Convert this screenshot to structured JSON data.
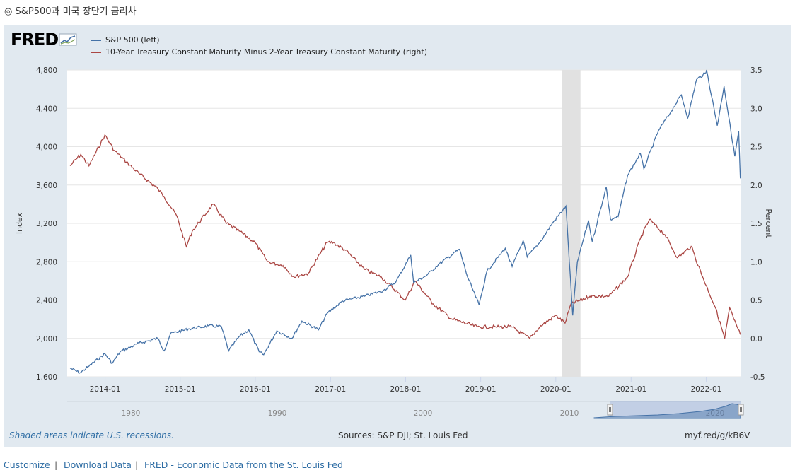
{
  "page_title": "◎ S&P500과 미국 장단기 금리차",
  "logo_text": "FRED",
  "footer": {
    "customize": "Customize",
    "download": "Download Data",
    "fred_link": "FRED - Economic Data from the St. Louis Fed",
    "separator": "|"
  },
  "notes": {
    "recession_note": "Shaded areas indicate U.S. recessions.",
    "sources": "Sources: S&P DJI; St. Louis Fed",
    "short_url": "myf.red/g/kB6V"
  },
  "colors": {
    "sp500": "#4572a7",
    "spread": "#aa4643",
    "panel_bg": "#e1e9f0",
    "recession": "#e1e1e1",
    "link": "#2e6da4"
  },
  "chart_data": {
    "type": "line",
    "title": "",
    "series": [
      {
        "name": "S&P 500 (left)",
        "axis": "left",
        "color": "#4572a7",
        "points": [
          [
            "2013-07-15",
            1690
          ],
          [
            "2013-09-01",
            1640
          ],
          [
            "2013-10-15",
            1710
          ],
          [
            "2013-12-31",
            1840
          ],
          [
            "2014-02-05",
            1740
          ],
          [
            "2014-03-15",
            1860
          ],
          [
            "2014-06-15",
            1950
          ],
          [
            "2014-09-15",
            2000
          ],
          [
            "2014-10-15",
            1870
          ],
          [
            "2014-11-15",
            2050
          ],
          [
            "2015-02-15",
            2100
          ],
          [
            "2015-05-20",
            2130
          ],
          [
            "2015-07-20",
            2125
          ],
          [
            "2015-08-25",
            1870
          ],
          [
            "2015-10-15",
            2020
          ],
          [
            "2015-12-01",
            2090
          ],
          [
            "2016-01-20",
            1860
          ],
          [
            "2016-02-11",
            1830
          ],
          [
            "2016-04-15",
            2080
          ],
          [
            "2016-06-27",
            2000
          ],
          [
            "2016-08-15",
            2180
          ],
          [
            "2016-11-04",
            2090
          ],
          [
            "2016-12-15",
            2260
          ],
          [
            "2017-03-01",
            2390
          ],
          [
            "2017-06-15",
            2440
          ],
          [
            "2017-09-15",
            2500
          ],
          [
            "2017-11-15",
            2590
          ],
          [
            "2018-01-26",
            2870
          ],
          [
            "2018-02-09",
            2580
          ],
          [
            "2018-04-15",
            2660
          ],
          [
            "2018-06-15",
            2780
          ],
          [
            "2018-09-20",
            2930
          ],
          [
            "2018-10-29",
            2640
          ],
          [
            "2018-12-24",
            2350
          ],
          [
            "2019-01-31",
            2700
          ],
          [
            "2019-04-30",
            2940
          ],
          [
            "2019-06-03",
            2750
          ],
          [
            "2019-07-26",
            3020
          ],
          [
            "2019-08-15",
            2850
          ],
          [
            "2019-10-15",
            3000
          ],
          [
            "2019-12-15",
            3200
          ],
          [
            "2020-02-19",
            3380
          ],
          [
            "2020-03-23",
            2240
          ],
          [
            "2020-04-15",
            2800
          ],
          [
            "2020-06-08",
            3230
          ],
          [
            "2020-06-26",
            3010
          ],
          [
            "2020-09-02",
            3580
          ],
          [
            "2020-09-23",
            3240
          ],
          [
            "2020-10-30",
            3270
          ],
          [
            "2020-12-15",
            3700
          ],
          [
            "2021-02-15",
            3930
          ],
          [
            "2021-03-04",
            3770
          ],
          [
            "2021-05-15",
            4170
          ],
          [
            "2021-07-15",
            4370
          ],
          [
            "2021-09-02",
            4540
          ],
          [
            "2021-10-04",
            4300
          ],
          [
            "2021-11-15",
            4700
          ],
          [
            "2021-12-31",
            4770
          ],
          [
            "2022-01-03",
            4800
          ],
          [
            "2022-02-24",
            4220
          ],
          [
            "2022-03-29",
            4630
          ],
          [
            "2022-05-20",
            3900
          ],
          [
            "2022-06-08",
            4160
          ],
          [
            "2022-06-16",
            3670
          ]
        ]
      },
      {
        "name": "10-Year Treasury Constant Maturity Minus 2-Year Treasury Constant Maturity (right)",
        "axis": "right",
        "color": "#aa4643",
        "points": [
          [
            "2013-07-15",
            2.25
          ],
          [
            "2013-09-05",
            2.4
          ],
          [
            "2013-10-15",
            2.25
          ],
          [
            "2013-12-31",
            2.65
          ],
          [
            "2014-02-15",
            2.45
          ],
          [
            "2014-04-15",
            2.3
          ],
          [
            "2014-06-15",
            2.15
          ],
          [
            "2014-09-15",
            1.95
          ],
          [
            "2014-10-15",
            1.85
          ],
          [
            "2014-12-15",
            1.6
          ],
          [
            "2015-01-31",
            1.2
          ],
          [
            "2015-03-01",
            1.4
          ],
          [
            "2015-06-10",
            1.75
          ],
          [
            "2015-08-15",
            1.5
          ],
          [
            "2015-10-15",
            1.4
          ],
          [
            "2015-12-31",
            1.25
          ],
          [
            "2016-03-01",
            1.0
          ],
          [
            "2016-05-15",
            0.95
          ],
          [
            "2016-07-08",
            0.8
          ],
          [
            "2016-09-15",
            0.85
          ],
          [
            "2016-12-15",
            1.25
          ],
          [
            "2017-01-15",
            1.25
          ],
          [
            "2017-03-15",
            1.15
          ],
          [
            "2017-06-15",
            0.9
          ],
          [
            "2017-09-05",
            0.8
          ],
          [
            "2017-12-31",
            0.5
          ],
          [
            "2018-02-15",
            0.75
          ],
          [
            "2018-05-15",
            0.45
          ],
          [
            "2018-08-15",
            0.25
          ],
          [
            "2018-12-15",
            0.15
          ],
          [
            "2019-03-15",
            0.15
          ],
          [
            "2019-05-31",
            0.15
          ],
          [
            "2019-08-27",
            0.0
          ],
          [
            "2019-10-15",
            0.15
          ],
          [
            "2019-12-31",
            0.3
          ],
          [
            "2020-02-15",
            0.2
          ],
          [
            "2020-03-15",
            0.45
          ],
          [
            "2020-06-15",
            0.55
          ],
          [
            "2020-09-15",
            0.55
          ],
          [
            "2020-12-15",
            0.8
          ],
          [
            "2021-02-15",
            1.3
          ],
          [
            "2021-03-31",
            1.55
          ],
          [
            "2021-06-15",
            1.35
          ],
          [
            "2021-08-15",
            1.05
          ],
          [
            "2021-10-20",
            1.2
          ],
          [
            "2021-12-15",
            0.8
          ],
          [
            "2022-02-15",
            0.4
          ],
          [
            "2022-04-01",
            0.0
          ],
          [
            "2022-04-25",
            0.4
          ],
          [
            "2022-05-15",
            0.25
          ],
          [
            "2022-06-16",
            0.05
          ]
        ]
      }
    ],
    "recessions": [
      [
        "2020-02-01",
        "2020-04-30"
      ]
    ],
    "x_range": [
      "2013-07-01",
      "2022-06-17"
    ],
    "xlabel": "",
    "ylabel_left": "Index",
    "ylabel_right": "Percent",
    "ylim_left": [
      1600,
      4800
    ],
    "ylim_right": [
      -0.5,
      3.5
    ],
    "yticks_left": [
      "1,600",
      "2,000",
      "2,400",
      "2,800",
      "3,200",
      "3,600",
      "4,000",
      "4,400",
      "4,800"
    ],
    "yticks_right": [
      "-0.5",
      "0.0",
      "0.5",
      "1.0",
      "1.5",
      "2.0",
      "2.5",
      "3.0",
      "3.5"
    ],
    "xticks": [
      "2014-01",
      "2015-01",
      "2016-01",
      "2017-01",
      "2018-01",
      "2019-01",
      "2020-01",
      "2021-01",
      "2022-01"
    ],
    "navigator_labels": [
      "1980",
      "1990",
      "2000",
      "2010",
      "2020"
    ],
    "grid": true,
    "legend_position": "top-left"
  }
}
